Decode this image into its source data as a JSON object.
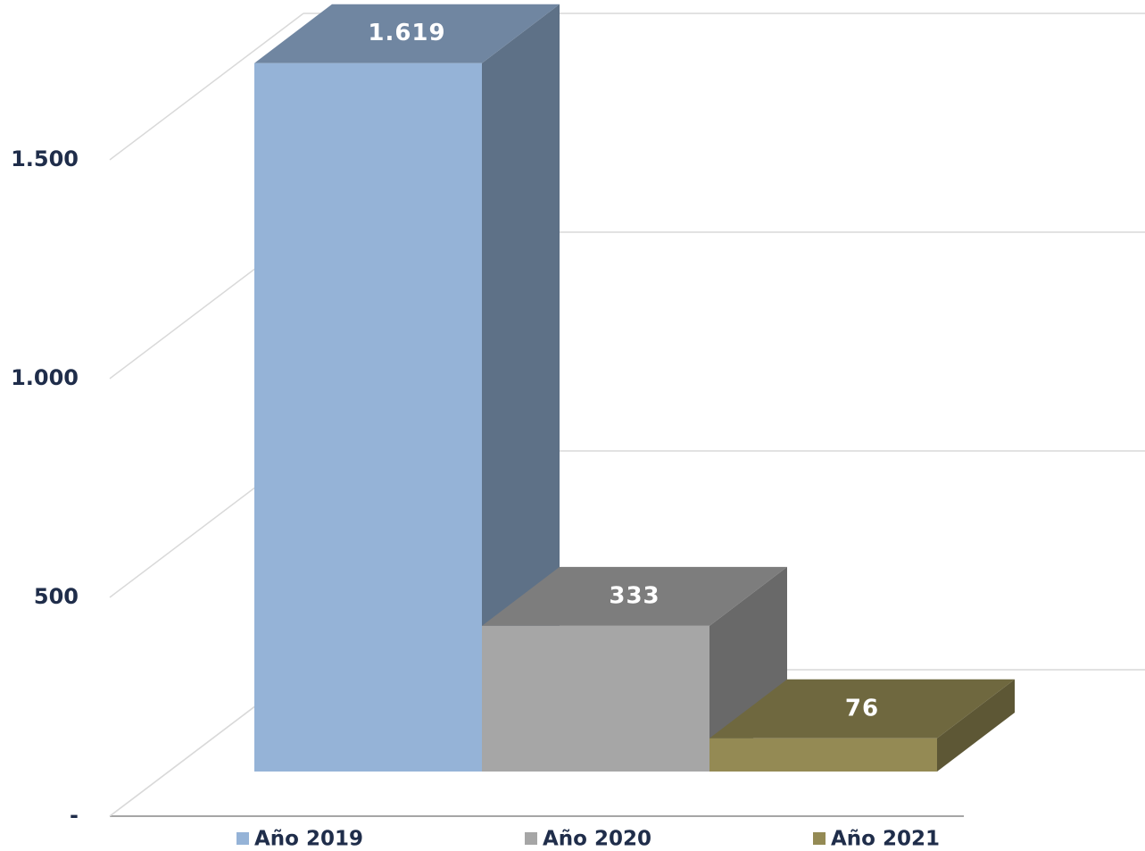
{
  "chart_data": {
    "type": "bar3d",
    "categories": [
      "Año 2019",
      "Año 2020",
      "Año 2021"
    ],
    "values": [
      1619,
      333,
      76
    ],
    "value_labels": [
      "1.619",
      "333",
      "76"
    ],
    "colors": [
      "#95b3d7",
      "#a6a6a6",
      "#948a54"
    ],
    "ylim": [
      0,
      1750
    ],
    "yticks": [
      {
        "value": 0,
        "label": "-"
      },
      500,
      {
        "value": 1000,
        "label": "1.000"
      },
      {
        "value": 1500,
        "label": "1.500"
      }
    ],
    "grid": true
  }
}
